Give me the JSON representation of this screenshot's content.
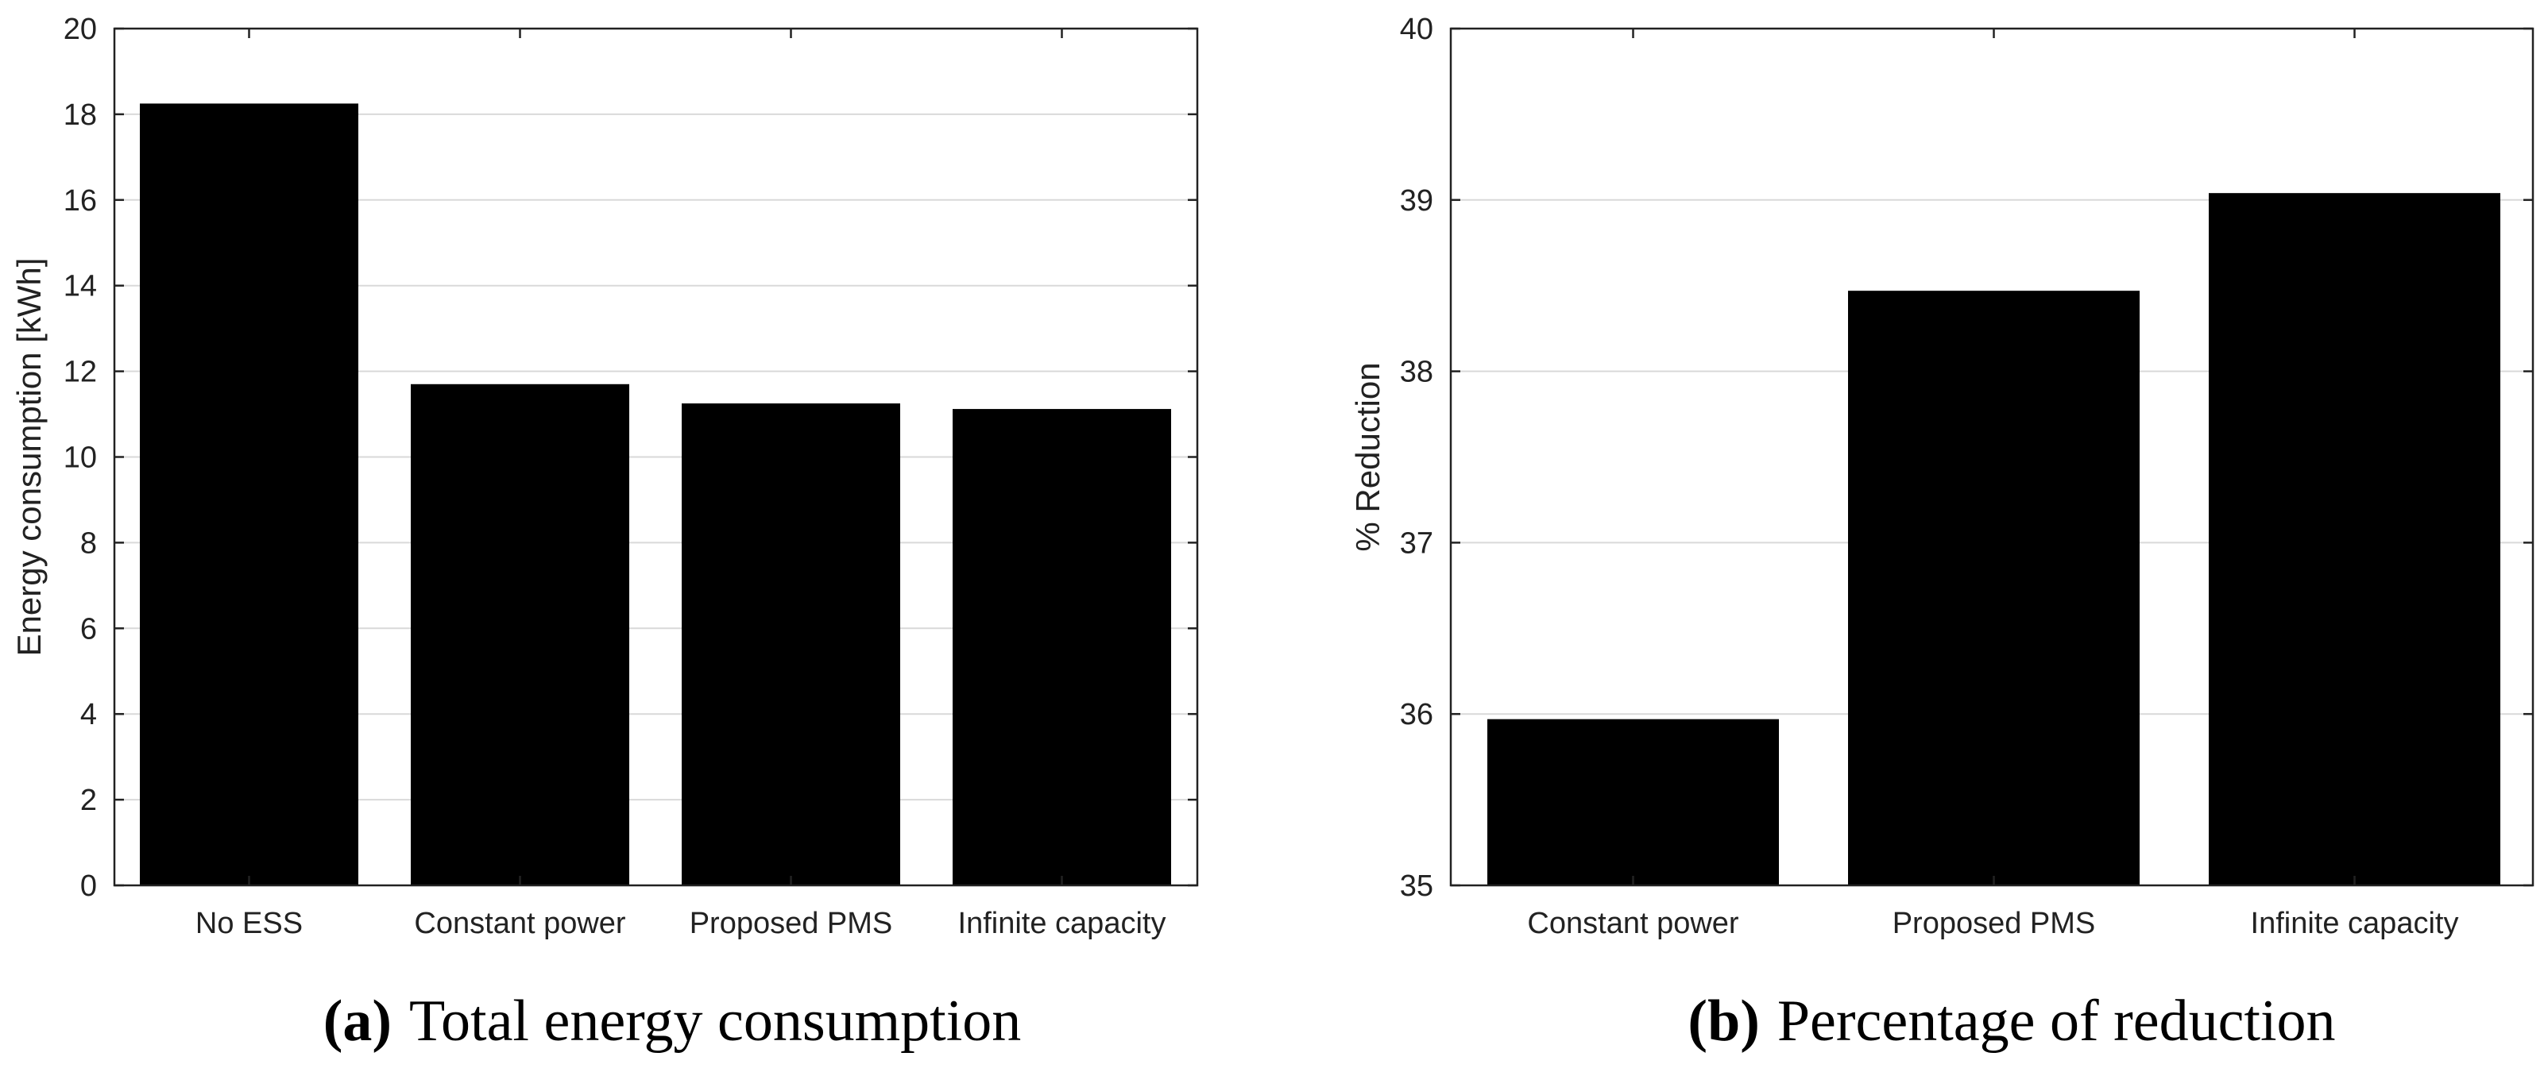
{
  "chart_data": [
    {
      "type": "bar",
      "panel": "a",
      "title": "",
      "caption_tag": "(a)",
      "caption_text": "Total energy consumption",
      "xlabel": "",
      "ylabel": "Energy consumption [kWh]",
      "ylim": [
        0,
        20
      ],
      "yticks": [
        0,
        2,
        4,
        6,
        8,
        10,
        12,
        14,
        16,
        18,
        20
      ],
      "grid": true,
      "categories": [
        "No ESS",
        "Constant power",
        "Proposed PMS",
        "Infinite capacity"
      ],
      "values": [
        18.25,
        11.7,
        11.25,
        11.12
      ],
      "bar_color": "#000000"
    },
    {
      "type": "bar",
      "panel": "b",
      "title": "",
      "caption_tag": "(b)",
      "caption_text": "Percentage of reduction",
      "xlabel": "",
      "ylabel": "% Reduction",
      "ylim": [
        35,
        40
      ],
      "yticks": [
        35,
        36,
        37,
        38,
        39,
        40
      ],
      "grid": true,
      "categories": [
        "Constant power",
        "Proposed PMS",
        "Infinite capacity"
      ],
      "values": [
        35.97,
        38.47,
        39.04
      ],
      "bar_color": "#000000"
    }
  ]
}
